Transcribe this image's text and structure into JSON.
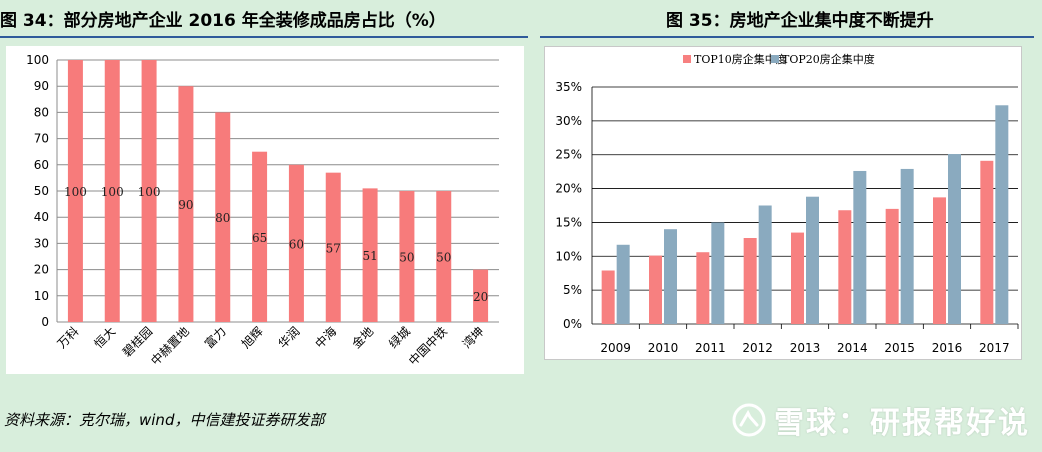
{
  "figure1": {
    "title": "图 34：部分房地产企业 2016 年全装修成品房占比（%）"
  },
  "figure2": {
    "title": "图 35：房地产企业集中度不断提升"
  },
  "source": "资料来源：克尔瑞，wind，中信建投证券研发部",
  "watermark": "雪球：研报帮好说",
  "colors": {
    "bar": "#f77b7b",
    "top10": "#f78080",
    "top20": "#8aaabf",
    "grid": "#8c8c8c",
    "background": "#d8eedc"
  },
  "chart_data": [
    {
      "type": "bar",
      "title": "",
      "categories": [
        "万科",
        "恒大",
        "碧桂园",
        "中赫置地",
        "富力",
        "旭辉",
        "华润",
        "中海",
        "金地",
        "绿城",
        "中国中铁",
        "湾坤"
      ],
      "values": [
        100,
        100,
        100,
        90,
        80,
        65,
        60,
        57,
        51,
        50,
        50,
        20
      ],
      "data_labels": [
        "100",
        "100",
        "100",
        "90",
        "80",
        "65",
        "60",
        "57",
        "51",
        "50",
        "50",
        "20"
      ],
      "y_ticks": [
        "0",
        "10",
        "20",
        "30",
        "40",
        "50",
        "60",
        "70",
        "80",
        "90",
        "100"
      ],
      "ylim": [
        0,
        100
      ],
      "grid": true
    },
    {
      "type": "bar",
      "title": "",
      "categories": [
        "2009",
        "2010",
        "2011",
        "2012",
        "2013",
        "2014",
        "2015",
        "2016",
        "2017"
      ],
      "series": [
        {
          "name": "TOP10房企集中度",
          "values": [
            7.9,
            10.1,
            10.6,
            12.7,
            13.5,
            16.8,
            17.0,
            18.7,
            24.1
          ]
        },
        {
          "name": "TOP20房企集中度",
          "values": [
            11.7,
            14.0,
            15.0,
            17.5,
            18.8,
            22.6,
            22.9,
            25.1,
            32.3
          ]
        }
      ],
      "y_ticks": [
        "0%",
        "5%",
        "10%",
        "15%",
        "20%",
        "25%",
        "30%",
        "35%"
      ],
      "ylim": [
        0,
        35
      ],
      "legend": "top-left",
      "grid": true
    }
  ]
}
